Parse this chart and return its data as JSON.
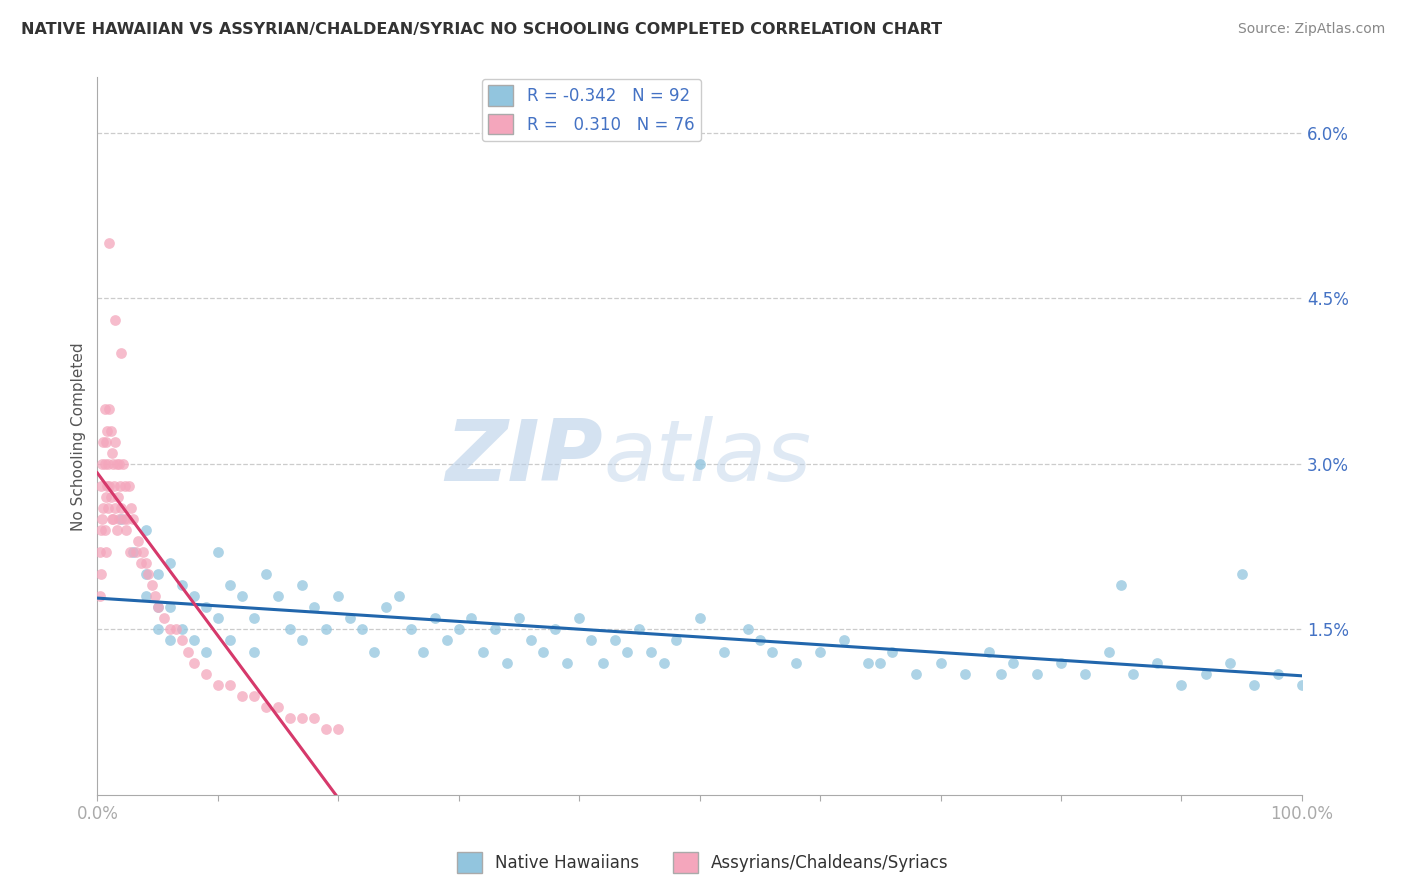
{
  "title": "NATIVE HAWAIIAN VS ASSYRIAN/CHALDEAN/SYRIAC NO SCHOOLING COMPLETED CORRELATION CHART",
  "source": "Source: ZipAtlas.com",
  "ylabel": "No Schooling Completed",
  "right_yticks": [
    "6.0%",
    "4.5%",
    "3.0%",
    "1.5%"
  ],
  "right_ytick_vals": [
    0.06,
    0.045,
    0.03,
    0.015
  ],
  "blue_color": "#92c5de",
  "pink_color": "#f4a6bc",
  "blue_line_color": "#2166ac",
  "pink_line_color": "#d6396b",
  "pink_dash_color": "#cccccc",
  "background_color": "#ffffff",
  "watermark": "ZIPatlas",
  "legend_r1": "-0.342",
  "legend_n1": "92",
  "legend_r2": "0.310",
  "legend_n2": "76",
  "blue_scatter_x": [
    0.02,
    0.03,
    0.04,
    0.04,
    0.04,
    0.05,
    0.05,
    0.05,
    0.06,
    0.06,
    0.06,
    0.07,
    0.07,
    0.08,
    0.08,
    0.09,
    0.09,
    0.1,
    0.1,
    0.11,
    0.11,
    0.12,
    0.13,
    0.13,
    0.14,
    0.15,
    0.16,
    0.17,
    0.17,
    0.18,
    0.19,
    0.2,
    0.21,
    0.22,
    0.23,
    0.24,
    0.25,
    0.26,
    0.27,
    0.28,
    0.29,
    0.3,
    0.31,
    0.32,
    0.33,
    0.34,
    0.35,
    0.36,
    0.37,
    0.38,
    0.39,
    0.4,
    0.41,
    0.42,
    0.43,
    0.44,
    0.45,
    0.46,
    0.47,
    0.48,
    0.5,
    0.52,
    0.54,
    0.56,
    0.58,
    0.6,
    0.62,
    0.64,
    0.66,
    0.68,
    0.7,
    0.72,
    0.74,
    0.76,
    0.78,
    0.8,
    0.82,
    0.84,
    0.86,
    0.88,
    0.9,
    0.92,
    0.94,
    0.96,
    0.98,
    1.0,
    0.55,
    0.65,
    0.75,
    0.85,
    0.95,
    0.5
  ],
  "blue_scatter_y": [
    0.025,
    0.022,
    0.02,
    0.018,
    0.024,
    0.02,
    0.017,
    0.015,
    0.021,
    0.017,
    0.014,
    0.019,
    0.015,
    0.018,
    0.014,
    0.017,
    0.013,
    0.022,
    0.016,
    0.019,
    0.014,
    0.018,
    0.016,
    0.013,
    0.02,
    0.018,
    0.015,
    0.019,
    0.014,
    0.017,
    0.015,
    0.018,
    0.016,
    0.015,
    0.013,
    0.017,
    0.018,
    0.015,
    0.013,
    0.016,
    0.014,
    0.015,
    0.016,
    0.013,
    0.015,
    0.012,
    0.016,
    0.014,
    0.013,
    0.015,
    0.012,
    0.016,
    0.014,
    0.012,
    0.014,
    0.013,
    0.015,
    0.013,
    0.012,
    0.014,
    0.016,
    0.013,
    0.015,
    0.013,
    0.012,
    0.013,
    0.014,
    0.012,
    0.013,
    0.011,
    0.012,
    0.011,
    0.013,
    0.012,
    0.011,
    0.012,
    0.011,
    0.013,
    0.011,
    0.012,
    0.01,
    0.011,
    0.012,
    0.01,
    0.011,
    0.01,
    0.014,
    0.012,
    0.011,
    0.019,
    0.02,
    0.03
  ],
  "pink_scatter_x": [
    0.002,
    0.002,
    0.003,
    0.003,
    0.003,
    0.004,
    0.004,
    0.005,
    0.005,
    0.006,
    0.006,
    0.006,
    0.007,
    0.007,
    0.007,
    0.008,
    0.008,
    0.009,
    0.009,
    0.01,
    0.01,
    0.011,
    0.011,
    0.012,
    0.012,
    0.013,
    0.013,
    0.014,
    0.015,
    0.015,
    0.016,
    0.016,
    0.017,
    0.018,
    0.018,
    0.019,
    0.02,
    0.021,
    0.022,
    0.023,
    0.024,
    0.025,
    0.026,
    0.027,
    0.028,
    0.03,
    0.032,
    0.034,
    0.036,
    0.038,
    0.04,
    0.042,
    0.045,
    0.048,
    0.05,
    0.055,
    0.06,
    0.065,
    0.07,
    0.075,
    0.08,
    0.09,
    0.1,
    0.11,
    0.12,
    0.13,
    0.14,
    0.15,
    0.16,
    0.17,
    0.18,
    0.19,
    0.2,
    0.01,
    0.015,
    0.02
  ],
  "pink_scatter_y": [
    0.022,
    0.018,
    0.028,
    0.024,
    0.02,
    0.03,
    0.025,
    0.032,
    0.026,
    0.035,
    0.03,
    0.024,
    0.032,
    0.027,
    0.022,
    0.033,
    0.028,
    0.03,
    0.026,
    0.035,
    0.028,
    0.033,
    0.027,
    0.031,
    0.025,
    0.03,
    0.025,
    0.028,
    0.032,
    0.026,
    0.03,
    0.024,
    0.027,
    0.03,
    0.025,
    0.028,
    0.026,
    0.03,
    0.025,
    0.028,
    0.024,
    0.025,
    0.028,
    0.022,
    0.026,
    0.025,
    0.022,
    0.023,
    0.021,
    0.022,
    0.021,
    0.02,
    0.019,
    0.018,
    0.017,
    0.016,
    0.015,
    0.015,
    0.014,
    0.013,
    0.012,
    0.011,
    0.01,
    0.01,
    0.009,
    0.009,
    0.008,
    0.008,
    0.007,
    0.007,
    0.007,
    0.006,
    0.006,
    0.05,
    0.043,
    0.04
  ]
}
